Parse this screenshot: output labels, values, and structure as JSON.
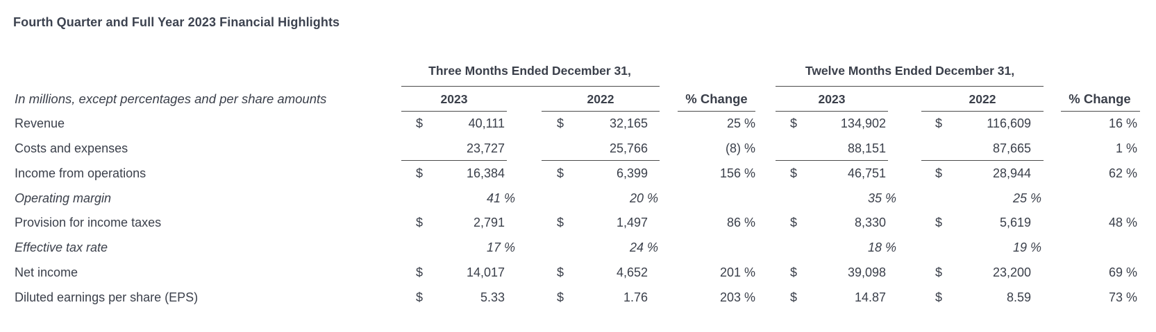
{
  "title": "Fourth Quarter and Full Year 2023 Financial Highlights",
  "headers": {
    "three_months": "Three Months Ended December 31,",
    "twelve_months": "Twelve Months Ended December 31,",
    "year_2023": "2023",
    "year_2022": "2022",
    "pct_change": "% Change"
  },
  "units_note": "In millions, except percentages and per share amounts",
  "rows": [
    {
      "label": "Revenue",
      "italic": false,
      "dollar": true,
      "q23": "40,111",
      "q22": "32,165",
      "qchg": "25 %",
      "y23": "134,902",
      "y22": "116,609",
      "ychg": "16 %"
    },
    {
      "label": "Costs and expenses",
      "italic": false,
      "dollar": false,
      "q23": "23,727",
      "q22": "25,766",
      "qchg": "(8) %",
      "y23": "88,151",
      "y22": "87,665",
      "ychg": "1 %"
    },
    {
      "label": "Income from operations",
      "italic": false,
      "dollar": true,
      "q23": "16,384",
      "q22": "6,399",
      "qchg": "156 %",
      "y23": "46,751",
      "y22": "28,944",
      "ychg": "62 %"
    },
    {
      "label": "Operating margin",
      "italic": true,
      "dollar": false,
      "q23": "41 %",
      "q22": "20 %",
      "qchg": "",
      "y23": "35 %",
      "y22": "25 %",
      "ychg": ""
    },
    {
      "label": "Provision for income taxes",
      "italic": false,
      "dollar": true,
      "q23": "2,791",
      "q22": "1,497",
      "qchg": "86 %",
      "y23": "8,330",
      "y22": "5,619",
      "ychg": "48 %"
    },
    {
      "label": "Effective tax rate",
      "italic": true,
      "dollar": false,
      "q23": "17 %",
      "q22": "24 %",
      "qchg": "",
      "y23": "18 %",
      "y22": "19 %",
      "ychg": ""
    },
    {
      "label": "Net income",
      "italic": false,
      "dollar": true,
      "q23": "14,017",
      "q22": "4,652",
      "qchg": "201 %",
      "y23": "39,098",
      "y22": "23,200",
      "ychg": "69 %"
    },
    {
      "label": "Diluted earnings per share (EPS)",
      "italic": false,
      "dollar": true,
      "q23": "5.33",
      "q22": "1.76",
      "qchg": "203 %",
      "y23": "14.87",
      "y22": "8.59",
      "ychg": "73 %"
    }
  ],
  "currency_symbol": "$"
}
